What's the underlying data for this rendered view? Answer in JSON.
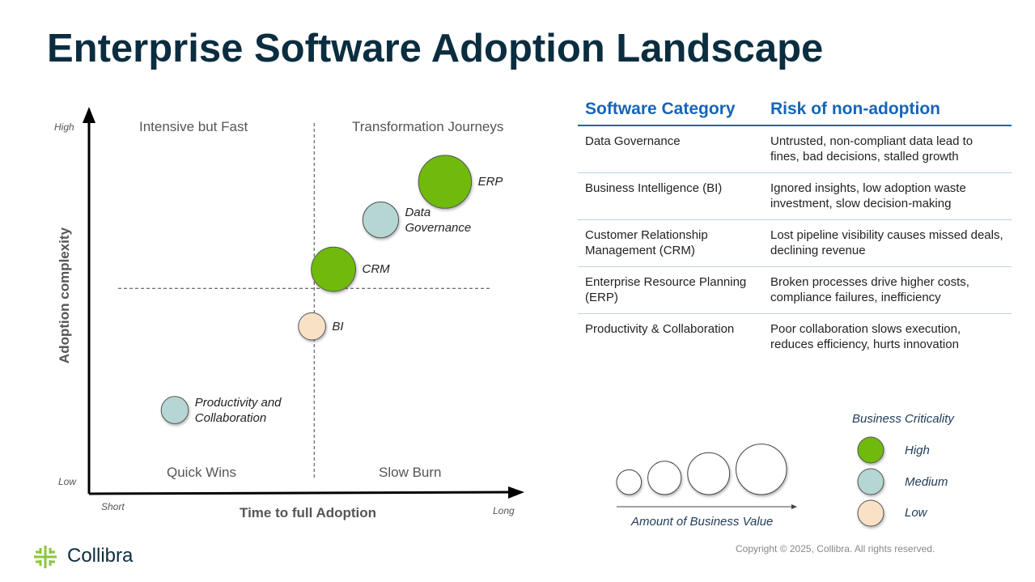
{
  "title": "Enterprise Software Adoption Landscape",
  "chart_data": {
    "type": "scatter",
    "subtype": "bubble",
    "xlabel": "Time to full Adoption",
    "ylabel": "Adoption complexity",
    "x_ticks": {
      "low": "Short",
      "high": "Long"
    },
    "y_ticks": {
      "low": "Low",
      "high": "High"
    },
    "xlim": [
      0,
      10
    ],
    "ylim": [
      0,
      10
    ],
    "quadrant_divider": {
      "x": 5.25,
      "y": 5.4
    },
    "quadrants": {
      "top_left": "Intensive but Fast",
      "top_right": "Transformation Journeys",
      "bottom_left": "Quick Wins",
      "bottom_right": "Slow Burn"
    },
    "points": [
      {
        "name": "ERP",
        "label": [
          "ERP"
        ],
        "x": 8.3,
        "y": 8.2,
        "business_value": 4,
        "criticality": "High"
      },
      {
        "name": "Data Governance",
        "label": [
          "Data",
          "Governance"
        ],
        "x": 6.8,
        "y": 7.2,
        "business_value": 2,
        "criticality": "Medium"
      },
      {
        "name": "CRM",
        "label": [
          "CRM"
        ],
        "x": 5.7,
        "y": 5.9,
        "business_value": 3,
        "criticality": "High"
      },
      {
        "name": "BI",
        "label": [
          "BI"
        ],
        "x": 5.2,
        "y": 4.4,
        "business_value": 1,
        "criticality": "Low"
      },
      {
        "name": "Productivity and Collaboration",
        "label": [
          "Productivity and",
          "Collaboration"
        ],
        "x": 2.0,
        "y": 2.2,
        "business_value": 1,
        "criticality": "Medium"
      }
    ],
    "colors": {
      "High": "#6fba0a",
      "Medium": "#b5d6d3",
      "Low": "#f9e1c6"
    },
    "size_legend": {
      "title": "Amount of Business Value",
      "values": [
        1,
        2,
        3,
        4
      ]
    },
    "color_legend": {
      "title": "Business Criticality",
      "items": [
        "High",
        "Medium",
        "Low"
      ]
    }
  },
  "table": {
    "headers": [
      "Software Category",
      "Risk of non-adoption"
    ],
    "rows": [
      [
        "Data Governance",
        "Untrusted, non-compliant data lead to fines, bad decisions, stalled growth"
      ],
      [
        "Business Intelligence (BI)",
        "Ignored insights, low adoption waste investment, slow decision-making"
      ],
      [
        "Customer Relationship Management (CRM)",
        "Lost pipeline visibility causes missed deals, declining revenue"
      ],
      [
        "Enterprise Resource Planning (ERP)",
        "Broken processes drive higher costs, compliance failures, inefficiency"
      ],
      [
        "Productivity & Collaboration",
        "Poor collaboration slows execution, reduces efficiency, hurts innovation"
      ]
    ]
  },
  "footer": {
    "copyright": "Copyright © 2025, Collibra. All rights reserved.",
    "logo": "Collibra"
  }
}
